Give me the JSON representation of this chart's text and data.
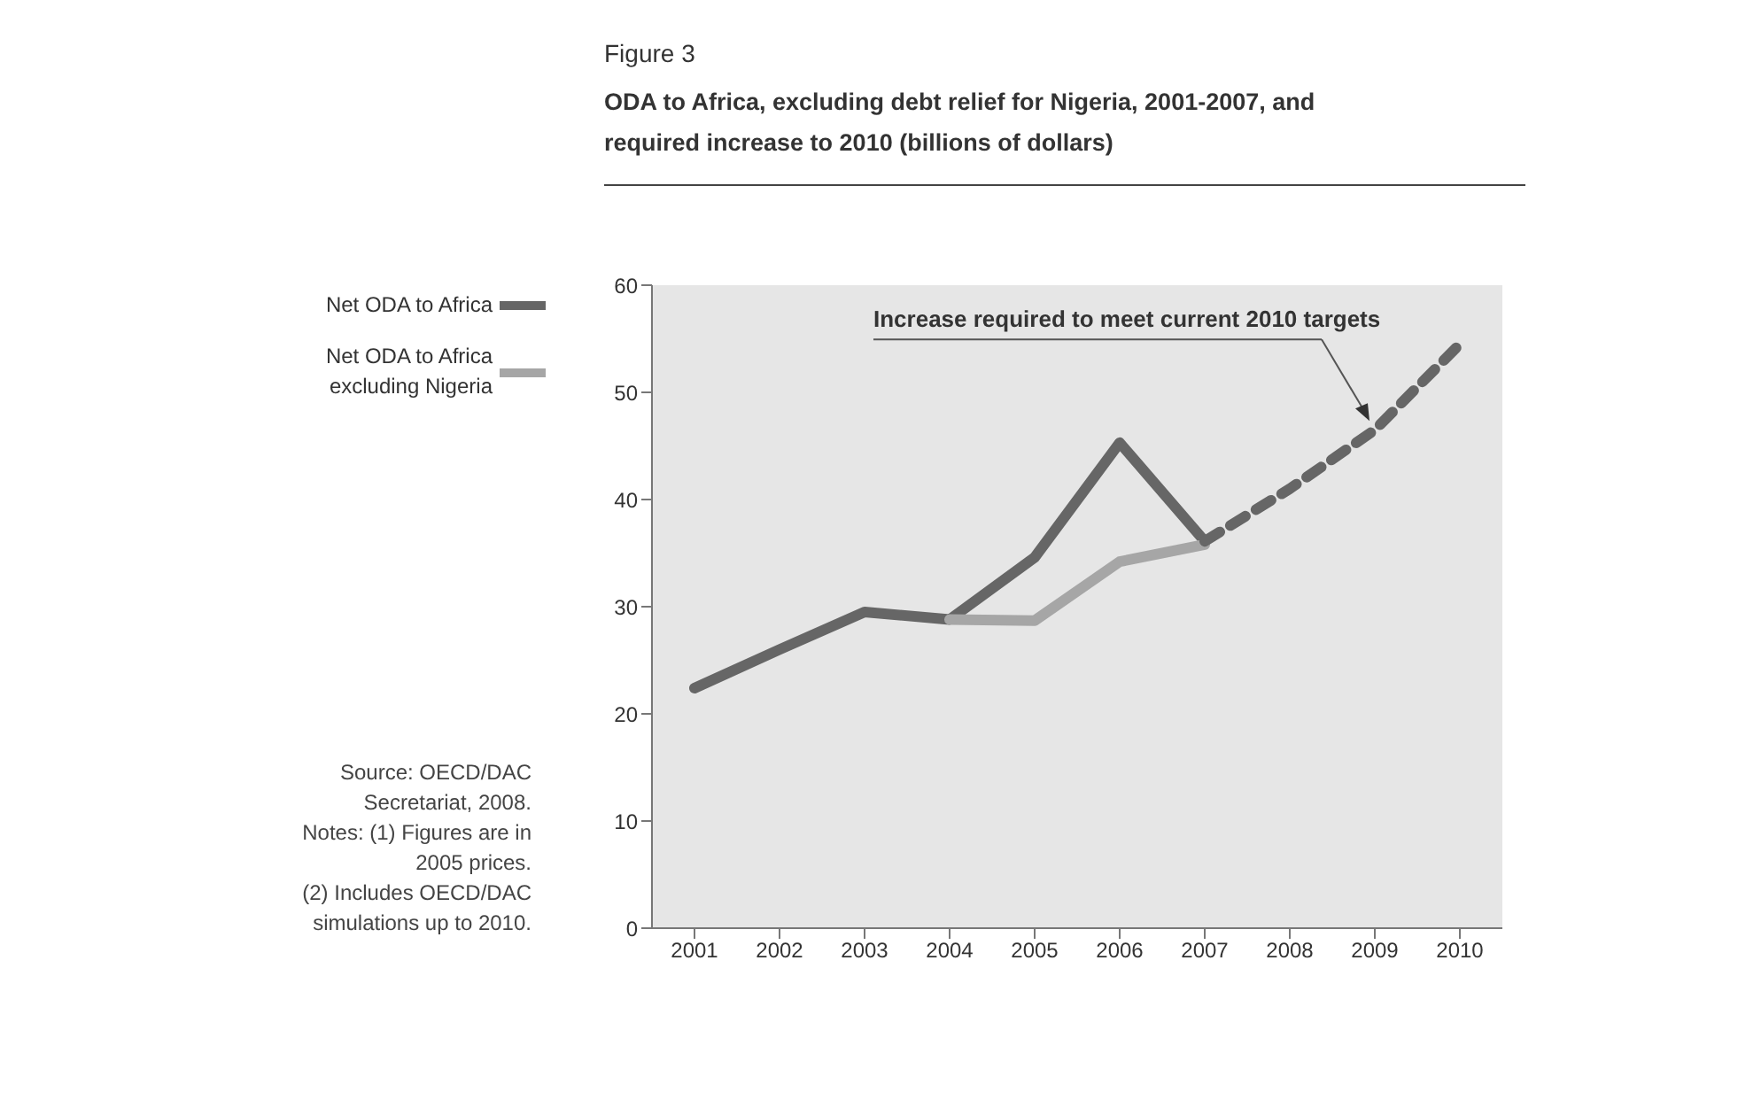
{
  "chart_data": {
    "type": "line",
    "title": "Figure 3",
    "subtitle": "ODA to Africa, excluding debt relief for Nigeria, 2001-2007, and required increase to 2010 (billions of dollars)",
    "categories": [
      "2001",
      "2002",
      "2003",
      "2004",
      "2005",
      "2006",
      "2007",
      "2008",
      "2009",
      "2010"
    ],
    "series": [
      {
        "name": "Net ODA to Africa",
        "color": "#666666",
        "values": [
          22.4,
          26,
          29.5,
          28.8,
          34.6,
          45.3,
          36.1,
          null,
          null,
          null
        ]
      },
      {
        "name": "Net ODA to Africa excluding Nigeria",
        "color": "#a6a6a6",
        "values": [
          null,
          null,
          null,
          28.8,
          28.7,
          34.2,
          35.8,
          null,
          null,
          null
        ]
      },
      {
        "color": "#666666",
        "line_style": "dashed",
        "values": [
          null,
          null,
          null,
          null,
          null,
          null,
          36.1,
          41,
          46.5,
          54.5
        ]
      }
    ],
    "ylim": [
      0,
      60
    ],
    "yticks": [
      0,
      10,
      20,
      30,
      40,
      50,
      60
    ],
    "grid": false,
    "legend": "left",
    "marker": "none",
    "annotations": [
      {
        "text": "Increase required to meet current 2010 targets",
        "x": "2009",
        "y": 47
      },
      "Source:  OECD/DAC Secretariat, 2008.",
      "Notes: (1) Figures are in 2005 prices.",
      "(2) Includes OECD/DAC simulations up to 2010."
    ]
  }
}
